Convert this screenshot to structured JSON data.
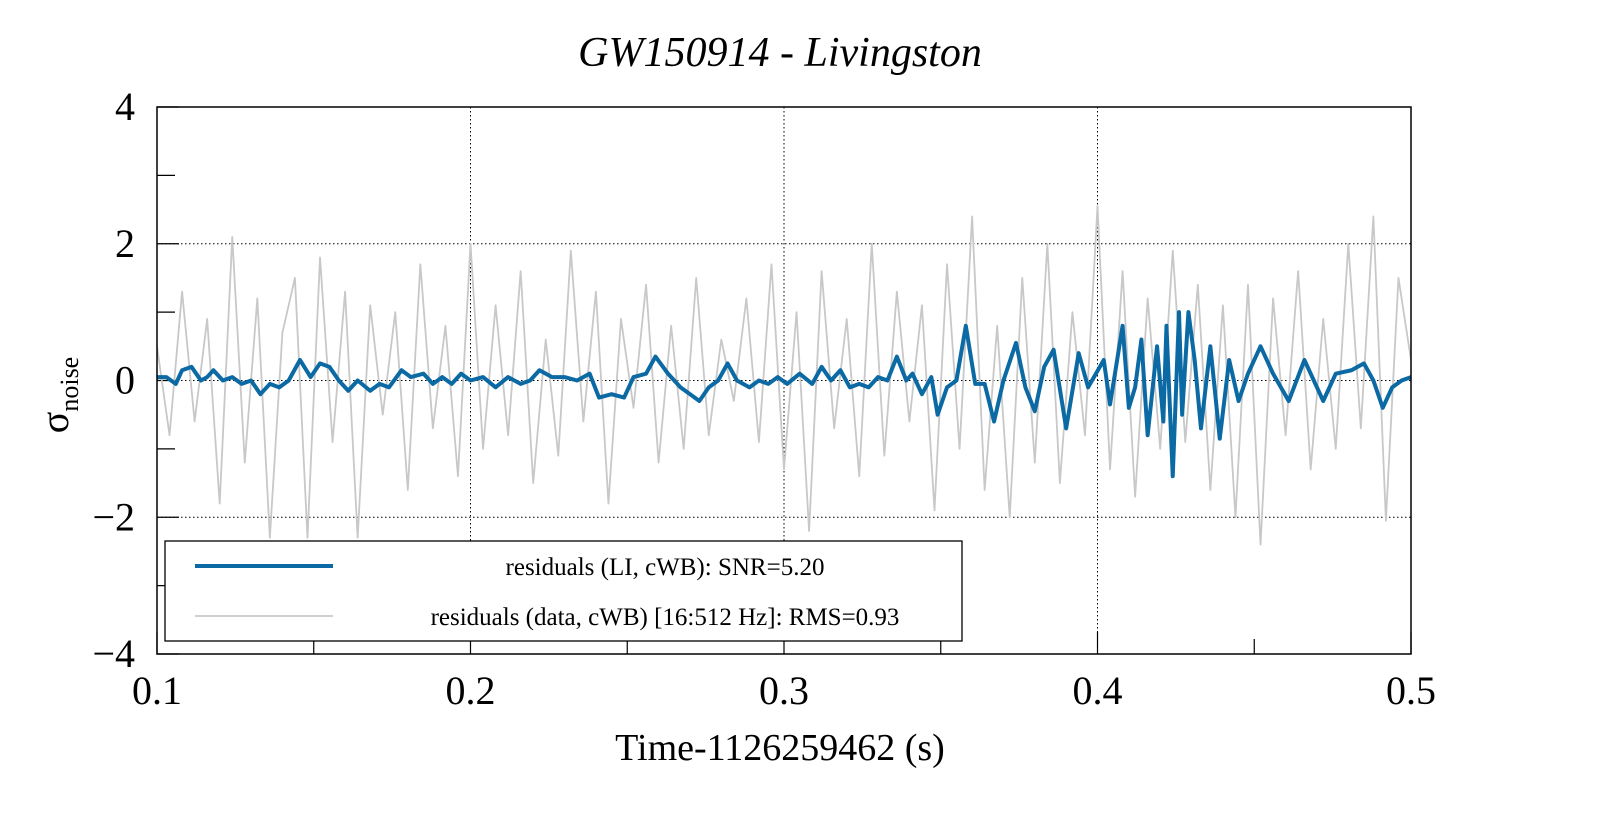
{
  "chart_data": {
    "type": "line",
    "title": "GW150914 - Livingston",
    "xlabel": "Time-1126259462 (s)",
    "ylabel": {
      "symbol": "σ",
      "subscript": "noise"
    },
    "xlim": [
      0.1,
      0.5
    ],
    "ylim": [
      -4,
      4
    ],
    "xticks": [
      0.1,
      0.2,
      0.3,
      0.4,
      0.5
    ],
    "xminorticks": [
      0.15,
      0.25,
      0.35,
      0.45
    ],
    "yticks": [
      {
        "value": -4,
        "label": "−4"
      },
      {
        "value": -2,
        "label": "−2"
      },
      0,
      2,
      4
    ],
    "yminorticks": [
      -3,
      -1,
      1,
      3
    ],
    "grid": true,
    "legend": "lower left",
    "series": [
      {
        "name": "residuals (LI, cWB): SNR=5.20",
        "color": "#0b6aa4",
        "width": 4,
        "x": [
          0.1,
          0.103,
          0.106,
          0.108,
          0.111,
          0.114,
          0.116,
          0.118,
          0.121,
          0.124,
          0.127,
          0.13,
          0.133,
          0.136,
          0.139,
          0.142,
          0.1456,
          0.149,
          0.152,
          0.155,
          0.158,
          0.161,
          0.164,
          0.168,
          0.171,
          0.174,
          0.178,
          0.181,
          0.185,
          0.188,
          0.191,
          0.194,
          0.197,
          0.2,
          0.204,
          0.208,
          0.212,
          0.216,
          0.219,
          0.222,
          0.226,
          0.23,
          0.234,
          0.238,
          0.241,
          0.245,
          0.249,
          0.252,
          0.256,
          0.259,
          0.263,
          0.267,
          0.27,
          0.273,
          0.276,
          0.279,
          0.282,
          0.285,
          0.289,
          0.292,
          0.295,
          0.298,
          0.301,
          0.305,
          0.309,
          0.312,
          0.315,
          0.318,
          0.321,
          0.324,
          0.327,
          0.33,
          0.333,
          0.336,
          0.339,
          0.341,
          0.344,
          0.347,
          0.349,
          0.352,
          0.355,
          0.358,
          0.361,
          0.364,
          0.367,
          0.37,
          0.374,
          0.377,
          0.38,
          0.383,
          0.386,
          0.39,
          0.394,
          0.397,
          0.402,
          0.404,
          0.408,
          0.41,
          0.412,
          0.414,
          0.416,
          0.419,
          0.421,
          0.422,
          0.424,
          0.426,
          0.427,
          0.429,
          0.431,
          0.433,
          0.436,
          0.439,
          0.442,
          0.445,
          0.448,
          0.452,
          0.456,
          0.461,
          0.466,
          0.469,
          0.472,
          0.476,
          0.481,
          0.485,
          0.488,
          0.491,
          0.494,
          0.497,
          0.5
        ],
        "values": [
          0.05,
          0.05,
          -0.05,
          0.15,
          0.2,
          0.0,
          0.05,
          0.15,
          0.0,
          0.05,
          -0.05,
          0.0,
          -0.2,
          -0.05,
          -0.1,
          0.0,
          0.3,
          0.05,
          0.25,
          0.2,
          0.0,
          -0.15,
          0.0,
          -0.15,
          -0.05,
          -0.1,
          0.15,
          0.05,
          0.1,
          -0.05,
          0.05,
          -0.05,
          0.1,
          0.0,
          0.05,
          -0.1,
          0.05,
          -0.05,
          0.0,
          0.15,
          0.05,
          0.05,
          0.0,
          0.1,
          -0.25,
          -0.2,
          -0.25,
          0.05,
          0.1,
          0.35,
          0.1,
          -0.1,
          -0.2,
          -0.3,
          -0.1,
          0.0,
          0.25,
          0.0,
          -0.1,
          0.0,
          -0.05,
          0.05,
          -0.05,
          0.1,
          -0.05,
          0.2,
          0.0,
          0.15,
          -0.1,
          -0.05,
          -0.1,
          0.05,
          0.0,
          0.35,
          0.0,
          0.1,
          -0.2,
          0.05,
          -0.5,
          -0.1,
          0.0,
          0.8,
          -0.05,
          -0.05,
          -0.6,
          0.0,
          0.55,
          -0.1,
          -0.45,
          0.2,
          0.45,
          -0.7,
          0.4,
          -0.1,
          0.3,
          -0.35,
          0.8,
          -0.4,
          -0.1,
          0.6,
          -0.8,
          0.5,
          -0.6,
          0.8,
          -1.4,
          1.0,
          -0.5,
          1.0,
          0.3,
          -0.7,
          0.5,
          -0.85,
          0.3,
          -0.3,
          0.1,
          0.5,
          0.1,
          -0.3,
          0.3,
          0.0,
          -0.3,
          0.1,
          0.15,
          0.25,
          0.0,
          -0.4,
          -0.1,
          0.0,
          0.05
        ]
      },
      {
        "name": "residuals (data, cWB) [16:512 Hz]: RMS=0.93",
        "color": "#c8c8c8",
        "width": 1.8,
        "x": [
          0.1,
          0.104,
          0.108,
          0.112,
          0.116,
          0.12,
          0.124,
          0.128,
          0.132,
          0.136,
          0.14,
          0.144,
          0.148,
          0.152,
          0.156,
          0.16,
          0.164,
          0.168,
          0.172,
          0.176,
          0.18,
          0.184,
          0.188,
          0.192,
          0.196,
          0.2,
          0.204,
          0.208,
          0.212,
          0.216,
          0.22,
          0.224,
          0.228,
          0.232,
          0.236,
          0.24,
          0.244,
          0.248,
          0.252,
          0.256,
          0.26,
          0.264,
          0.268,
          0.272,
          0.276,
          0.28,
          0.284,
          0.288,
          0.292,
          0.296,
          0.3,
          0.304,
          0.308,
          0.312,
          0.316,
          0.32,
          0.324,
          0.328,
          0.332,
          0.336,
          0.34,
          0.344,
          0.348,
          0.352,
          0.356,
          0.36,
          0.364,
          0.368,
          0.372,
          0.376,
          0.38,
          0.384,
          0.388,
          0.392,
          0.396,
          0.4,
          0.404,
          0.408,
          0.412,
          0.416,
          0.42,
          0.424,
          0.428,
          0.432,
          0.436,
          0.44,
          0.444,
          0.448,
          0.452,
          0.456,
          0.46,
          0.464,
          0.468,
          0.472,
          0.476,
          0.48,
          0.484,
          0.488,
          0.492,
          0.496,
          0.5
        ],
        "values": [
          0.5,
          -0.8,
          1.3,
          -0.6,
          0.9,
          -1.8,
          2.1,
          -1.2,
          1.2,
          -2.3,
          0.7,
          1.5,
          -2.3,
          1.8,
          -0.9,
          1.3,
          -2.3,
          1.1,
          -0.5,
          1.0,
          -1.6,
          1.7,
          -0.7,
          0.8,
          -1.4,
          2.0,
          -1.0,
          1.1,
          -0.8,
          1.6,
          -1.5,
          0.6,
          -1.1,
          1.9,
          -0.6,
          1.3,
          -1.8,
          0.9,
          -0.4,
          1.4,
          -1.2,
          0.8,
          -1.0,
          1.5,
          -0.8,
          0.6,
          -0.3,
          1.2,
          -0.9,
          1.7,
          -1.3,
          1.0,
          -2.2,
          1.6,
          -0.7,
          0.9,
          -1.4,
          2.0,
          -1.1,
          1.3,
          -0.6,
          1.1,
          -1.9,
          1.7,
          -1.0,
          2.4,
          -1.6,
          0.8,
          -2.0,
          1.5,
          -1.2,
          2.0,
          -1.5,
          1.0,
          -0.8,
          2.55,
          -1.3,
          1.6,
          -1.7,
          1.2,
          -1.0,
          1.9,
          -0.9,
          1.4,
          -1.6,
          1.1,
          -2.0,
          1.4,
          -2.4,
          1.2,
          -0.8,
          1.6,
          -1.3,
          0.9,
          -1.0,
          2.0,
          -0.7,
          2.4,
          -2.05,
          1.5,
          0.3
        ]
      }
    ]
  }
}
